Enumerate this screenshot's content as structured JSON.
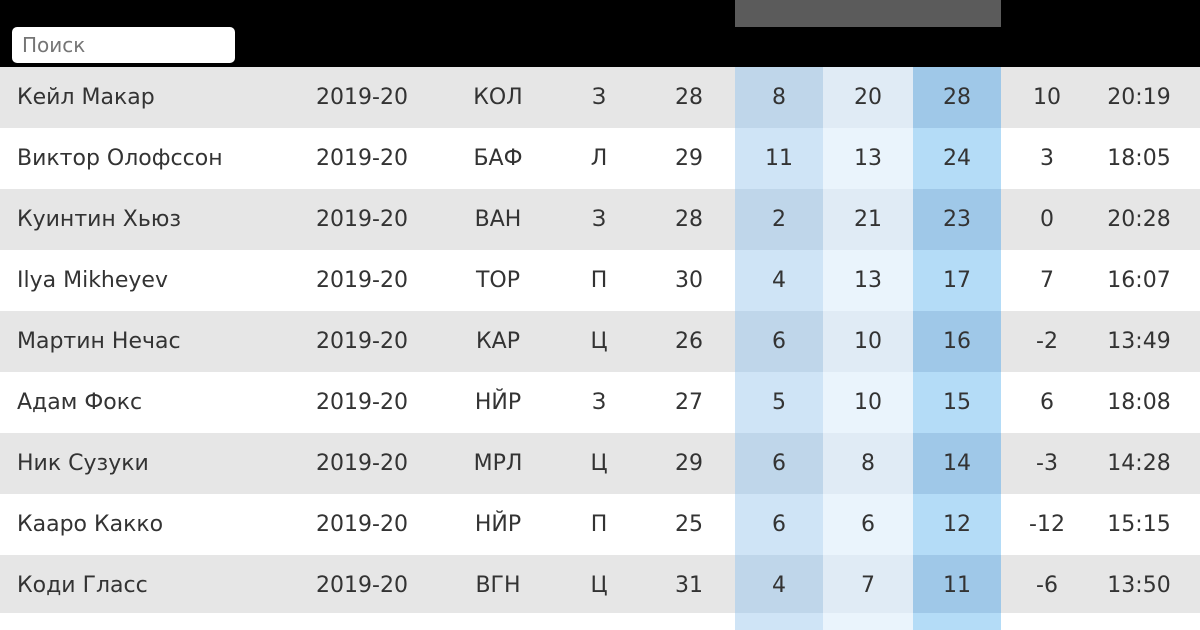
{
  "search": {
    "placeholder": "Поиск"
  },
  "rows": [
    {
      "name": "Кейл Макар",
      "season": "2019-20",
      "team": "КОЛ",
      "pos": "З",
      "gp": "28",
      "g": "8",
      "a": "20",
      "p": "28",
      "pm": "10",
      "toi": "20:19"
    },
    {
      "name": "Виктор Олофссон",
      "season": "2019-20",
      "team": "БАФ",
      "pos": "Л",
      "gp": "29",
      "g": "11",
      "a": "13",
      "p": "24",
      "pm": "3",
      "toi": "18:05"
    },
    {
      "name": "Куинтин Хьюз",
      "season": "2019-20",
      "team": "ВАН",
      "pos": "З",
      "gp": "28",
      "g": "2",
      "a": "21",
      "p": "23",
      "pm": "0",
      "toi": "20:28"
    },
    {
      "name": "Ilya Mikheyev",
      "season": "2019-20",
      "team": "ТОР",
      "pos": "П",
      "gp": "30",
      "g": "4",
      "a": "13",
      "p": "17",
      "pm": "7",
      "toi": "16:07"
    },
    {
      "name": "Мартин Нечас",
      "season": "2019-20",
      "team": "КАР",
      "pos": "Ц",
      "gp": "26",
      "g": "6",
      "a": "10",
      "p": "16",
      "pm": "-2",
      "toi": "13:49"
    },
    {
      "name": "Адам Фокс",
      "season": "2019-20",
      "team": "НЙР",
      "pos": "З",
      "gp": "27",
      "g": "5",
      "a": "10",
      "p": "15",
      "pm": "6",
      "toi": "18:08"
    },
    {
      "name": "Ник Сузуки",
      "season": "2019-20",
      "team": "МРЛ",
      "pos": "Ц",
      "gp": "29",
      "g": "6",
      "a": "8",
      "p": "14",
      "pm": "-3",
      "toi": "14:28"
    },
    {
      "name": "Каарo Какко",
      "season": "2019-20",
      "team": "НЙР",
      "pos": "П",
      "gp": "25",
      "g": "6",
      "a": "6",
      "p": "12",
      "pm": "-12",
      "toi": "15:15"
    },
    {
      "name": "Коди Гласс",
      "season": "2019-20",
      "team": "ВГН",
      "pos": "Ц",
      "gp": "31",
      "g": "4",
      "a": "7",
      "p": "11",
      "pm": "-6",
      "toi": "13:50"
    }
  ],
  "colors": {
    "header_bg": "#000000",
    "row_stripe": "#e6e6e6",
    "highlight_points": "#9fc8e8",
    "highlight_goals": "#bfd6ea",
    "highlight_assists": "#e0ebf5"
  }
}
